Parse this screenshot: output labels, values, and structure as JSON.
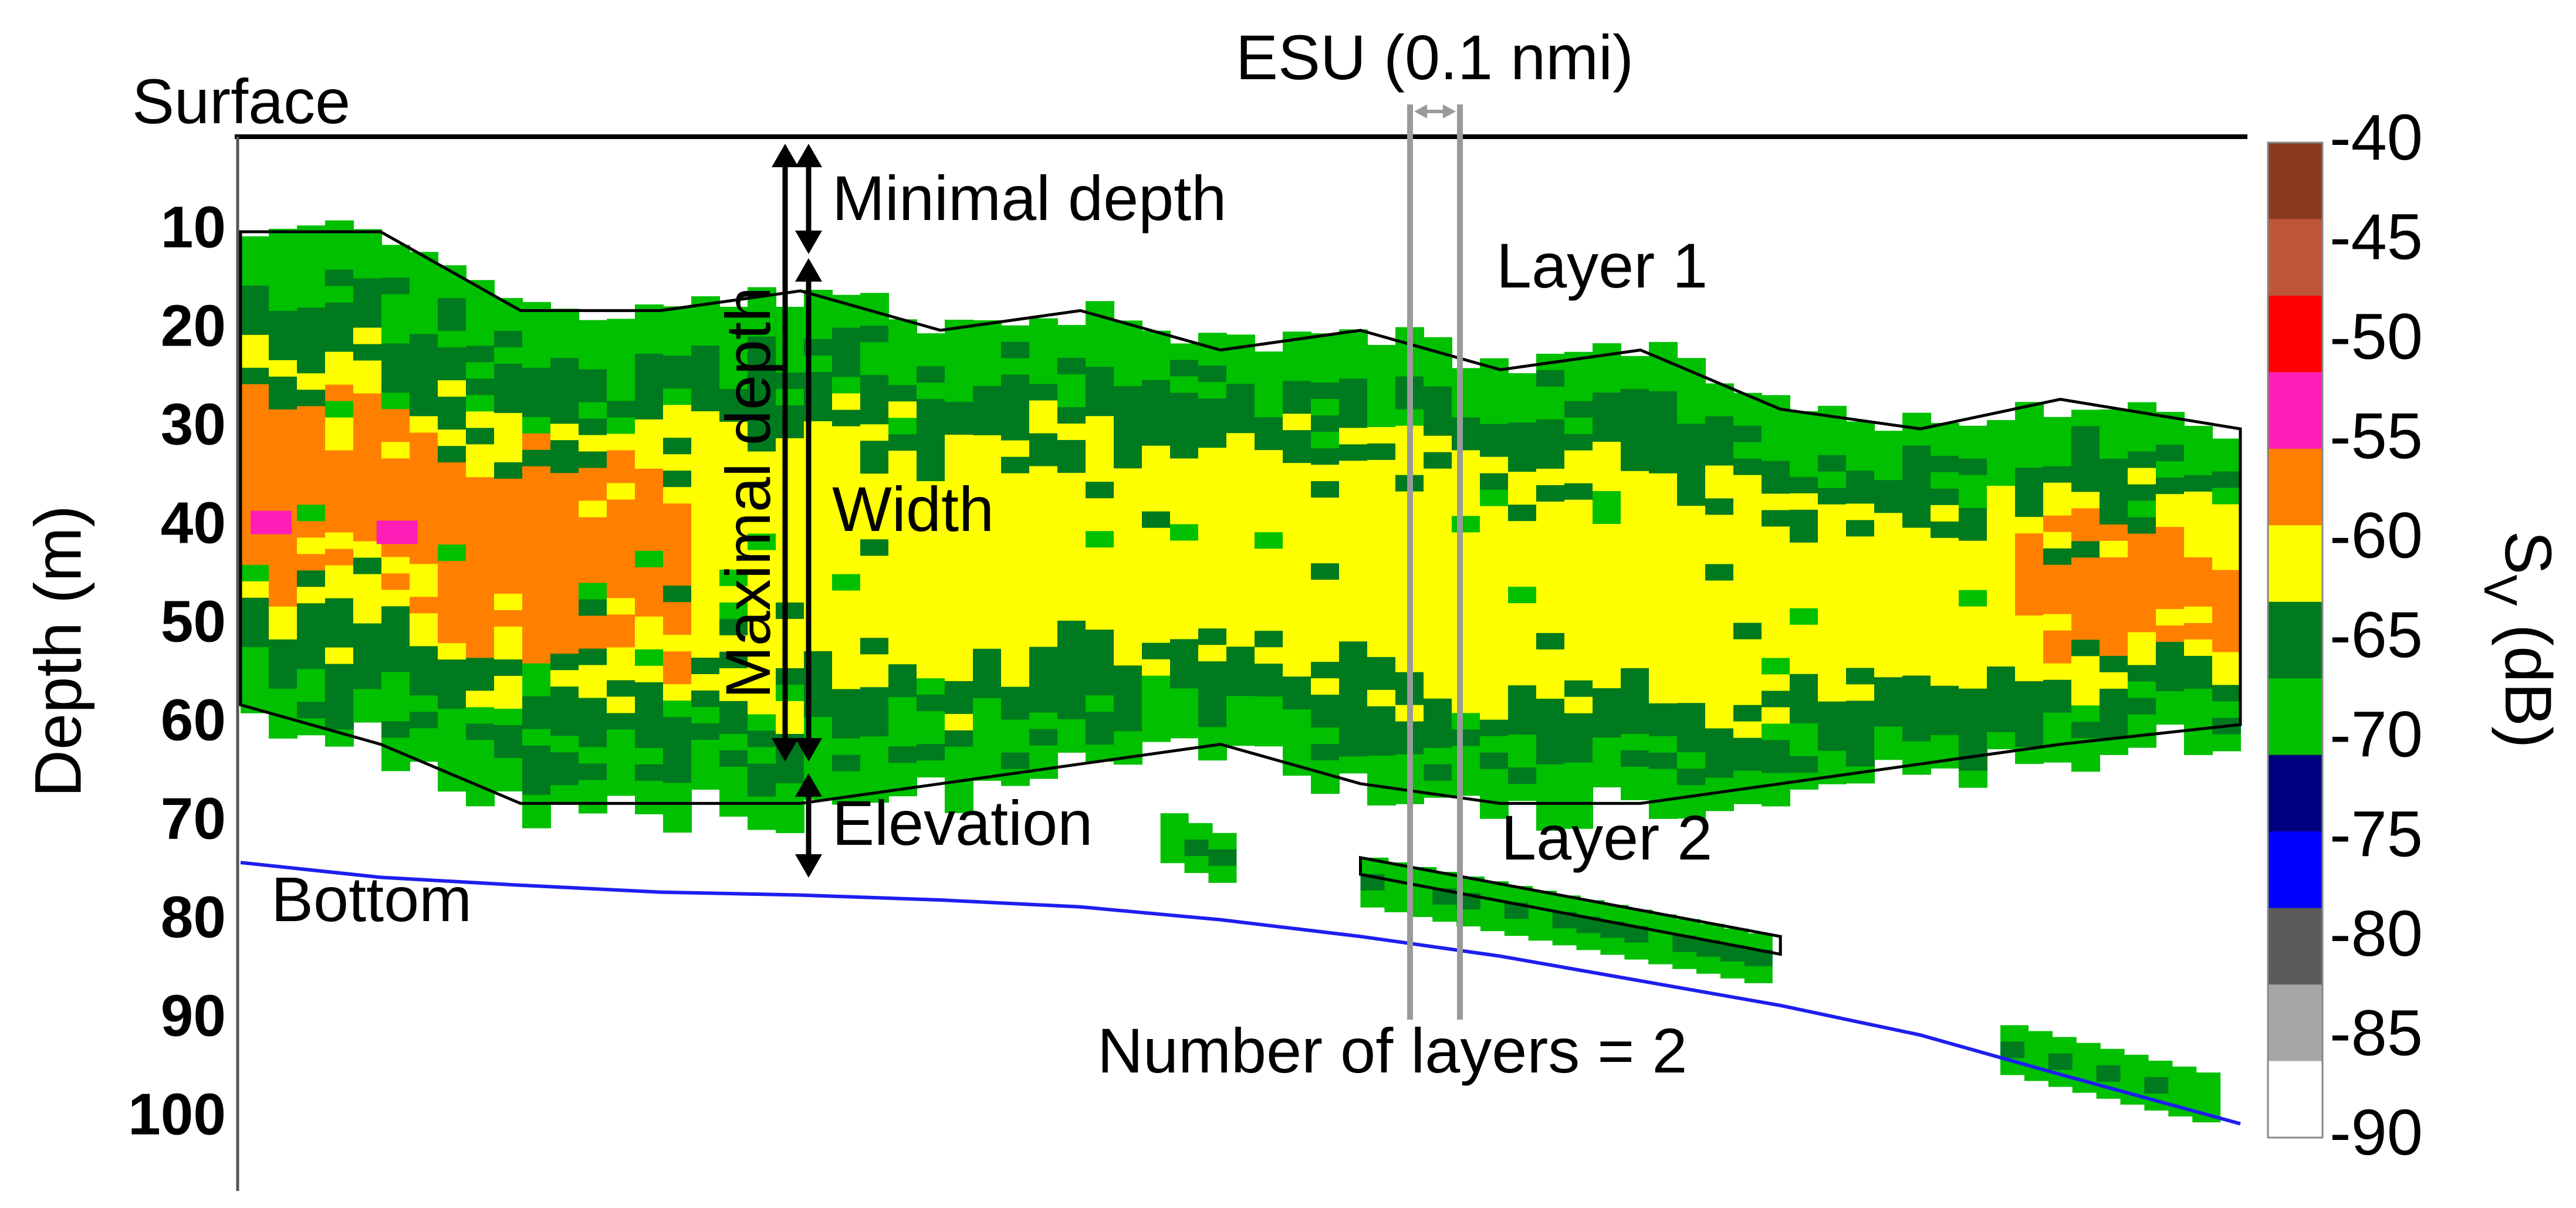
{
  "chart_data": {
    "type": "heatmap",
    "title": "",
    "xlabel": "",
    "ylabel": "Depth (m)",
    "yticks": [
      "10",
      "20",
      "30",
      "40",
      "50",
      "60",
      "70",
      "80",
      "90",
      "100"
    ],
    "ylim": [
      0,
      105
    ],
    "y_inverted": true,
    "grid": false,
    "colorbar": {
      "label": "S_V (dB)",
      "label_main": "S",
      "label_sub": "V",
      "label_unit": " (dB)",
      "ticks": [
        "-40",
        "-45",
        "-50",
        "-55",
        "-60",
        "-65",
        "-70",
        "-75",
        "-80",
        "-85",
        "-90"
      ],
      "bins": [
        {
          "range": [
            -45,
            -40
          ],
          "color": "#8B3A1E"
        },
        {
          "range": [
            -50,
            -45
          ],
          "color": "#C0553A"
        },
        {
          "range": [
            -55,
            -50
          ],
          "color": "#FF0000"
        },
        {
          "range": [
            -60,
            -55
          ],
          "color": "#FF1DB8"
        },
        {
          "range": [
            -65,
            -60
          ],
          "color": "#FF8000"
        },
        {
          "range": [
            -70,
            -65
          ],
          "color": "#FFFF00"
        },
        {
          "range": [
            -75,
            -70
          ],
          "color": "#007A1E"
        },
        {
          "range": [
            -80,
            -75
          ],
          "color": "#00C000"
        },
        {
          "range": [
            -85,
            -80
          ],
          "color": "#000080"
        },
        {
          "range": [
            -90,
            -85
          ],
          "color": "#0000FF"
        },
        {
          "range": [
            -95,
            -90
          ],
          "color": "#5A5A5A"
        },
        {
          "range": [
            -100,
            -95
          ],
          "color": "#A6A6A6"
        },
        {
          "range": [
            -105,
            -100
          ],
          "color": "#FFFFFF"
        }
      ]
    },
    "color_classes": {
      "weak": "#00C000",
      "moderate": "#007A1E",
      "strong": "#FFFF00",
      "very_strong": "#FF8000",
      "peak": "#FF1DB8"
    },
    "x_range": [
      0,
      100
    ],
    "layer1": {
      "top_depth": [
        10,
        10,
        18,
        18,
        16,
        20,
        18,
        22,
        20,
        24,
        22,
        28,
        30,
        27,
        30
      ],
      "bottom_depth": [
        58,
        62,
        68,
        68,
        68,
        66,
        64,
        62,
        66,
        68,
        68,
        66,
        64,
        62,
        60
      ],
      "x": [
        0,
        7,
        14,
        21,
        28,
        35,
        42,
        49,
        56,
        63,
        70,
        77,
        84,
        91,
        100
      ]
    },
    "bottom_line": {
      "x": [
        0,
        7,
        14,
        21,
        28,
        35,
        42,
        49,
        56,
        63,
        70,
        77,
        84,
        91,
        100
      ],
      "depth": [
        74,
        75.5,
        76.3,
        77,
        77.3,
        77.8,
        78.5,
        79.8,
        81.5,
        83.5,
        86,
        88.5,
        91.5,
        95.5,
        100.5
      ]
    },
    "annotations": {
      "surface": "Surface",
      "bottom": "Bottom",
      "minimal_depth": "Minimal depth",
      "maximal_depth": "Maximal depth",
      "width": "Width",
      "elevation": "Elevation",
      "layer1": "Layer 1",
      "layer2": "Layer 2",
      "esu": "ESU (0.1 nmi)",
      "n_layers": "Number of layers = 2"
    }
  }
}
